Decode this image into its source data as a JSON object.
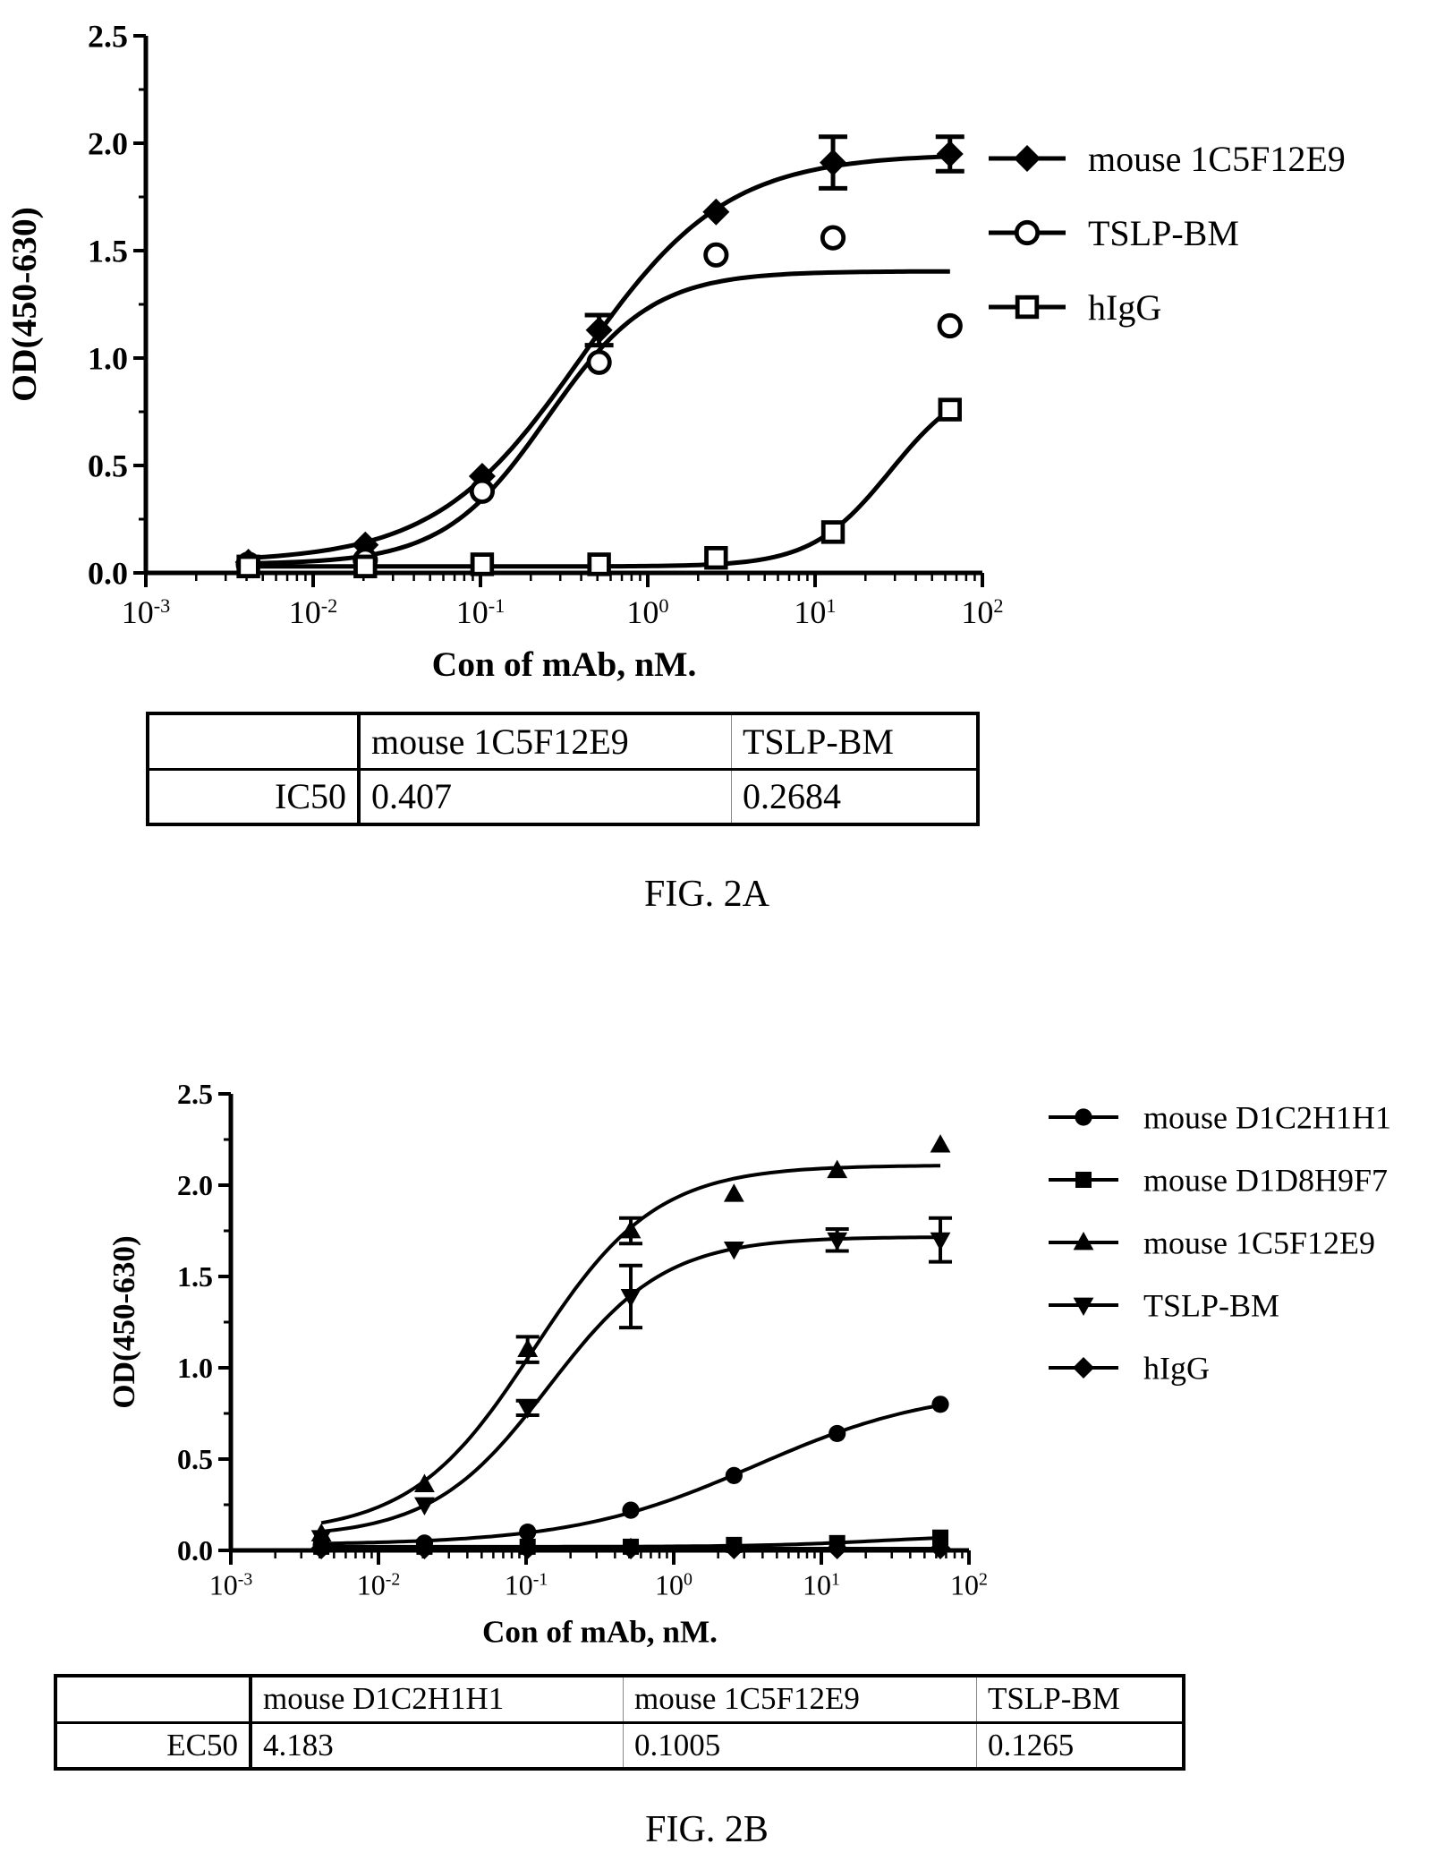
{
  "chart_data": [
    {
      "type": "scatter",
      "title": "",
      "xlabel": "Con of mAb, nM.",
      "ylabel": "OD(450-630)",
      "xscale": "log",
      "xlim": [
        0.001,
        100
      ],
      "ylim": [
        0,
        2.5
      ],
      "x_tick_labels": [
        "10-3",
        "10-2",
        "10-1",
        "100",
        "101",
        "102"
      ],
      "y_tick_labels": [
        "0.0",
        "0.5",
        "1.0",
        "1.5",
        "2.0",
        "2.5"
      ],
      "legend_position": "right",
      "fitted_curves": "4-parameter logistic",
      "series": [
        {
          "name": "mouse 1C5F12E9",
          "marker": "diamond-filled",
          "x": [
            0.0041,
            0.0205,
            0.1024,
            0.512,
            2.56,
            12.8,
            64
          ],
          "y": [
            0.05,
            0.13,
            0.45,
            1.13,
            1.68,
            1.91,
            1.95
          ],
          "error": [
            0,
            0,
            0,
            0.07,
            0,
            0.12,
            0.08
          ]
        },
        {
          "name": "TSLP-BM",
          "marker": "circle-open",
          "x": [
            0.0041,
            0.0205,
            0.1024,
            0.512,
            2.56,
            12.8,
            64
          ],
          "y": [
            0.04,
            0.06,
            0.38,
            0.98,
            1.48,
            1.56,
            1.15
          ],
          "error": [
            0,
            0,
            0,
            0,
            0,
            0,
            0
          ]
        },
        {
          "name": "hIgG",
          "marker": "square-open",
          "x": [
            0.0041,
            0.0205,
            0.1024,
            0.512,
            2.56,
            12.8,
            64
          ],
          "y": [
            0.03,
            0.03,
            0.04,
            0.04,
            0.07,
            0.19,
            0.76
          ],
          "error": [
            0,
            0,
            0,
            0,
            0,
            0,
            0
          ]
        }
      ]
    },
    {
      "type": "scatter",
      "title": "",
      "xlabel": "Con of mAb, nM.",
      "ylabel": "OD(450-630)",
      "xscale": "log",
      "xlim": [
        0.001,
        100
      ],
      "ylim": [
        0,
        2.5
      ],
      "x_tick_labels": [
        "10-3",
        "10-2",
        "10-1",
        "100",
        "101",
        "102"
      ],
      "y_tick_labels": [
        "0.0",
        "0.5",
        "1.0",
        "1.5",
        "2.0",
        "2.5"
      ],
      "legend_position": "right",
      "fitted_curves": "4-parameter logistic",
      "series": [
        {
          "name": "mouse D1C2H1H1",
          "marker": "circle-filled",
          "x": [
            0.0041,
            0.0205,
            0.1024,
            0.512,
            2.56,
            12.8,
            64
          ],
          "y": [
            0.03,
            0.04,
            0.1,
            0.22,
            0.41,
            0.64,
            0.8
          ],
          "error": [
            0,
            0,
            0,
            0,
            0,
            0,
            0
          ]
        },
        {
          "name": "mouse D1D8H9F7",
          "marker": "square-filled",
          "x": [
            0.0041,
            0.0205,
            0.1024,
            0.512,
            2.56,
            12.8,
            64
          ],
          "y": [
            0.02,
            0.02,
            0.02,
            0.02,
            0.03,
            0.04,
            0.07
          ],
          "error": [
            0,
            0,
            0,
            0,
            0,
            0,
            0
          ]
        },
        {
          "name": "mouse 1C5F12E9",
          "marker": "triangle-up-filled",
          "x": [
            0.0041,
            0.0205,
            0.1024,
            0.512,
            2.56,
            12.8,
            64
          ],
          "y": [
            0.09,
            0.36,
            1.1,
            1.75,
            1.95,
            2.08,
            2.22
          ],
          "error": [
            0,
            0,
            0.07,
            0.07,
            0,
            0,
            0
          ]
        },
        {
          "name": "TSLP-BM",
          "marker": "triangle-down-filled",
          "x": [
            0.0041,
            0.0205,
            0.1024,
            0.512,
            2.56,
            12.8,
            64
          ],
          "y": [
            0.07,
            0.25,
            0.78,
            1.39,
            1.65,
            1.7,
            1.7
          ],
          "error": [
            0,
            0,
            0.04,
            0.17,
            0,
            0.06,
            0.12
          ]
        },
        {
          "name": "hIgG",
          "marker": "diamond-filled",
          "x": [
            0.0041,
            0.0205,
            0.1024,
            0.512,
            2.56,
            12.8,
            64
          ],
          "y": [
            0.01,
            0.01,
            0.01,
            0.01,
            0.01,
            0.01,
            0.01
          ],
          "error": [
            0,
            0,
            0,
            0,
            0,
            0,
            0
          ]
        }
      ]
    }
  ],
  "fig2a": {
    "table": {
      "header": [
        "",
        "mouse 1C5F12E9",
        "TSLP-BM"
      ],
      "row": [
        "IC50",
        "0.407",
        "0.2684"
      ]
    },
    "caption": "FIG. 2A"
  },
  "fig2b": {
    "table": {
      "header": [
        "",
        "mouse D1C2H1H1",
        "mouse 1C5F12E9",
        "TSLP-BM"
      ],
      "row": [
        "EC50",
        "4.183",
        "0.1005",
        "0.1265"
      ]
    },
    "caption": "FIG. 2B"
  }
}
